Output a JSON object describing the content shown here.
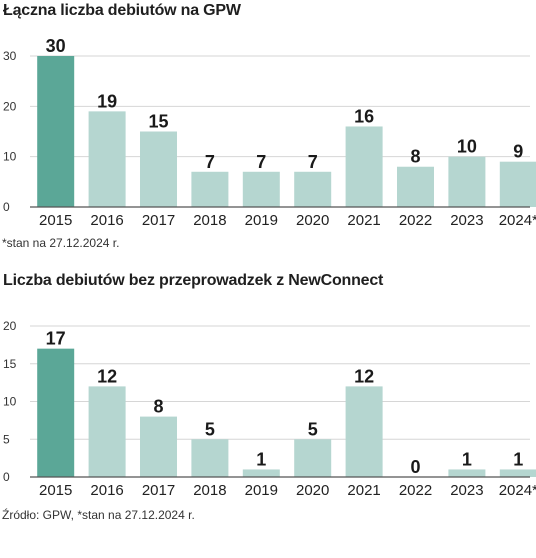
{
  "chart_data": [
    {
      "type": "bar",
      "title": "Łączna liczba debiutów na GPW",
      "categories": [
        "2015",
        "2016",
        "2017",
        "2018",
        "2019",
        "2020",
        "2021",
        "2022",
        "2023",
        "2024*"
      ],
      "values": [
        30,
        19,
        15,
        7,
        7,
        7,
        16,
        8,
        10,
        9
      ],
      "yticks": [
        "0",
        "10",
        "20",
        "30"
      ],
      "ylim": [
        0,
        30
      ],
      "grid": true,
      "note": "*stan na 27.12.2024 r.",
      "highlight_index": 0,
      "colors": {
        "highlight": "#5ba797",
        "bar": "#b5d6d0",
        "grid": "#d6d6d6",
        "axis": "#555555"
      }
    },
    {
      "type": "bar",
      "title": "Liczba debiutów bez przeprowadzek z NewConnect",
      "categories": [
        "2015",
        "2016",
        "2017",
        "2018",
        "2019",
        "2020",
        "2021",
        "2022",
        "2023",
        "2024*"
      ],
      "values": [
        17,
        12,
        8,
        5,
        1,
        5,
        12,
        0,
        1,
        1
      ],
      "yticks": [
        "0",
        "5",
        "10",
        "15",
        "20"
      ],
      "ylim": [
        0,
        20
      ],
      "grid": true,
      "note": "Źródło: GPW, *stan na 27.12.2024 r.",
      "highlight_index": 0,
      "colors": {
        "highlight": "#5ba797",
        "bar": "#b5d6d0",
        "grid": "#d6d6d6",
        "axis": "#555555"
      }
    }
  ]
}
